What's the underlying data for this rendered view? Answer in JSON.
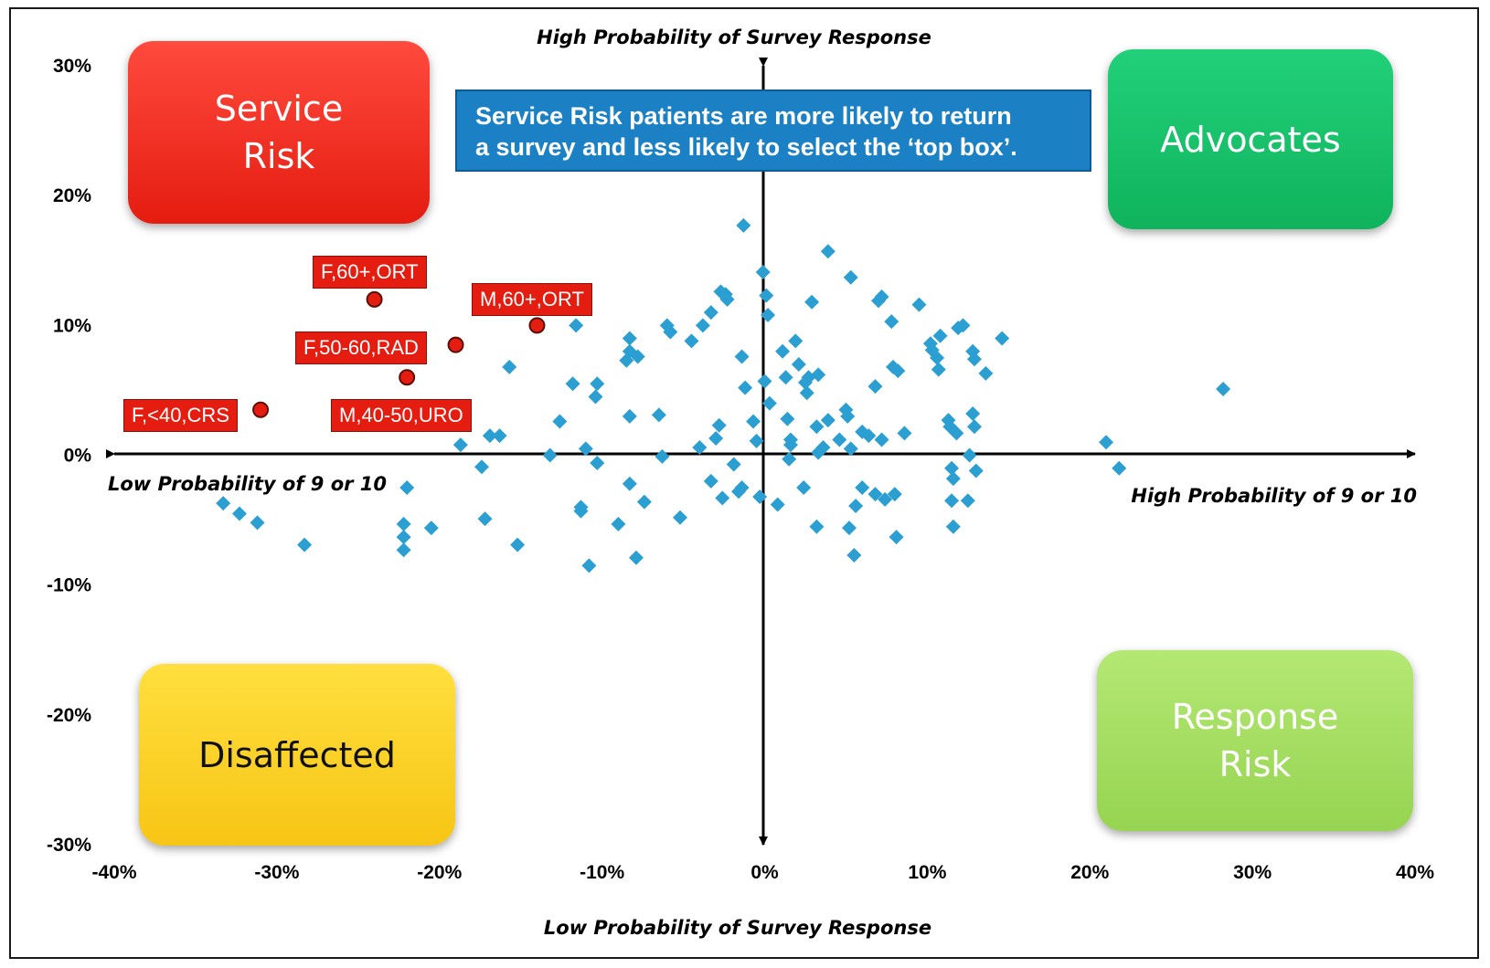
{
  "chart_data": {
    "type": "scatter",
    "title": "",
    "xlabel_right": "High Probability of 9 or 10",
    "xlabel_left": "Low Probability of 9 or 10",
    "ylabel_top": "High Probability of Survey Response",
    "ylabel_bottom": "Low Probability of Survey Response",
    "xlim": [
      -40,
      40
    ],
    "ylim": [
      -30,
      30
    ],
    "x_ticks": [
      -40,
      -30,
      -20,
      -10,
      0,
      10,
      20,
      30,
      40
    ],
    "y_ticks": [
      30,
      20,
      10,
      0,
      -10,
      -20,
      -30
    ],
    "x_tick_labels": [
      "-40%",
      "-30%",
      "-20%",
      "-10%",
      "0%",
      "10%",
      "20%",
      "30%",
      "40%"
    ],
    "y_tick_labels": [
      "30%",
      "20%",
      "10%",
      "0%",
      "-10%",
      "-20%",
      "-30%"
    ],
    "grid": false,
    "quadrants": {
      "top_left": "Service\nRisk",
      "top_right": "Advocates",
      "bottom_left": "Disaffected",
      "bottom_right": "Response\nRisk"
    },
    "callout": "Service Risk patients are more likely to return\na survey and less likely to select the ‘top box’.",
    "colors": {
      "points": "#2b9fd2",
      "highlight": "#e51c10",
      "service_risk": "#f22a1e",
      "advocates": "#14c065",
      "disaffected": "#fbd22a",
      "response_risk": "#a6dd62",
      "callout": "#1b80c4"
    },
    "highlighted": [
      {
        "label": "F,60+,ORT",
        "x": -24,
        "y": 12
      },
      {
        "label": "M,60+,ORT",
        "x": -14,
        "y": 10
      },
      {
        "label": "F,50-60,RAD",
        "x": -19,
        "y": 8.5
      },
      {
        "label": "M,40-50,URO",
        "x": -22,
        "y": 6
      },
      {
        "label": "F,<40,CRS",
        "x": -31,
        "y": 3.5
      }
    ],
    "series": [
      {
        "points": [
          [
            -33.3,
            -3.7
          ],
          [
            -32.3,
            -4.5
          ],
          [
            -31.2,
            -5.2
          ],
          [
            -28.3,
            -6.9
          ],
          [
            -22.0,
            -2.5
          ],
          [
            -22.2,
            -5.3
          ],
          [
            -22.2,
            -6.3
          ],
          [
            -22.2,
            -7.3
          ],
          [
            -20.5,
            -5.6
          ],
          [
            -18.7,
            0.8
          ],
          [
            -17.4,
            -0.9
          ],
          [
            -17.2,
            -4.9
          ],
          [
            -16.9,
            1.5
          ],
          [
            -16.3,
            1.5
          ],
          [
            -15.7,
            6.8
          ],
          [
            -15.2,
            -6.9
          ],
          [
            -13.2,
            0.0
          ],
          [
            -12.6,
            2.6
          ],
          [
            -11.8,
            5.5
          ],
          [
            -11.6,
            10.0
          ],
          [
            -11.3,
            -4.0
          ],
          [
            -11.3,
            -4.3
          ],
          [
            -11.0,
            0.5
          ],
          [
            -10.8,
            -8.5
          ],
          [
            -10.4,
            4.5
          ],
          [
            -10.3,
            5.5
          ],
          [
            -10.3,
            -0.6
          ],
          [
            -9.0,
            -5.3
          ],
          [
            -8.5,
            7.3
          ],
          [
            -8.3,
            3.0
          ],
          [
            -8.3,
            8.0
          ],
          [
            -8.3,
            -2.2
          ],
          [
            -8.3,
            9.0
          ],
          [
            -7.8,
            7.6
          ],
          [
            -7.9,
            -7.9
          ],
          [
            -7.4,
            -3.6
          ],
          [
            -6.5,
            3.1
          ],
          [
            -6.3,
            -0.1
          ],
          [
            -6.0,
            10.0
          ],
          [
            -5.8,
            9.5
          ],
          [
            -5.2,
            -4.8
          ],
          [
            -4.5,
            8.8
          ],
          [
            -4.0,
            0.6
          ],
          [
            -3.8,
            10.0
          ],
          [
            -3.3,
            11.0
          ],
          [
            -3.3,
            -2.0
          ],
          [
            -3.0,
            1.3
          ],
          [
            -2.8,
            2.3
          ],
          [
            -2.7,
            12.6
          ],
          [
            -2.6,
            -3.3
          ],
          [
            -2.4,
            12.4
          ],
          [
            -2.3,
            12.0
          ],
          [
            -1.9,
            -0.7
          ],
          [
            -1.6,
            -2.8
          ],
          [
            -1.4,
            -2.5
          ],
          [
            -1.4,
            7.6
          ],
          [
            -1.3,
            17.7
          ],
          [
            -1.2,
            5.2
          ],
          [
            -0.7,
            2.6
          ],
          [
            -0.5,
            1.1
          ],
          [
            -0.3,
            -3.2
          ],
          [
            -0.1,
            14.1
          ],
          [
            0.0,
            5.7
          ],
          [
            0.1,
            12.3
          ],
          [
            0.2,
            10.8
          ],
          [
            0.3,
            4.0
          ],
          [
            0.8,
            -3.8
          ],
          [
            1.1,
            8.0
          ],
          [
            1.3,
            6.0
          ],
          [
            1.4,
            2.8
          ],
          [
            1.5,
            -0.3
          ],
          [
            1.6,
            1.2
          ],
          [
            1.6,
            0.8
          ],
          [
            1.9,
            8.8
          ],
          [
            2.1,
            7.0
          ],
          [
            2.4,
            -2.5
          ],
          [
            2.5,
            5.6
          ],
          [
            2.6,
            4.8
          ],
          [
            2.7,
            6.0
          ],
          [
            2.9,
            11.8
          ],
          [
            3.2,
            2.2
          ],
          [
            3.3,
            6.2
          ],
          [
            3.2,
            -5.5
          ],
          [
            3.3,
            0.2
          ],
          [
            3.6,
            0.6
          ],
          [
            3.9,
            2.7
          ],
          [
            3.9,
            15.7
          ],
          [
            4.6,
            1.2
          ],
          [
            5.0,
            3.5
          ],
          [
            5.1,
            3.0
          ],
          [
            5.2,
            -5.6
          ],
          [
            5.3,
            0.5
          ],
          [
            5.3,
            13.7
          ],
          [
            5.5,
            -7.7
          ],
          [
            5.6,
            -3.9
          ],
          [
            6.0,
            1.8
          ],
          [
            6.0,
            -2.5
          ],
          [
            6.4,
            1.5
          ],
          [
            6.8,
            5.3
          ],
          [
            6.8,
            -3.0
          ],
          [
            7.0,
            11.9
          ],
          [
            7.2,
            12.2
          ],
          [
            7.4,
            -3.4
          ],
          [
            7.2,
            1.2
          ],
          [
            7.8,
            10.3
          ],
          [
            7.9,
            6.8
          ],
          [
            8.2,
            6.5
          ],
          [
            8.0,
            -3.0
          ],
          [
            8.1,
            -6.3
          ],
          [
            8.6,
            1.7
          ],
          [
            9.5,
            11.6
          ],
          [
            10.2,
            8.6
          ],
          [
            10.3,
            8.1
          ],
          [
            10.6,
            7.5
          ],
          [
            10.7,
            6.6
          ],
          [
            10.8,
            9.2
          ],
          [
            11.3,
            2.7
          ],
          [
            11.4,
            2.2
          ],
          [
            11.5,
            -1.0
          ],
          [
            11.6,
            -1.8
          ],
          [
            11.5,
            -3.5
          ],
          [
            11.6,
            -5.5
          ],
          [
            11.8,
            1.7
          ],
          [
            11.9,
            9.8
          ],
          [
            12.2,
            10.0
          ],
          [
            12.5,
            -3.5
          ],
          [
            12.6,
            0.0
          ],
          [
            12.8,
            3.2
          ],
          [
            12.9,
            2.2
          ],
          [
            12.8,
            8.0
          ],
          [
            12.9,
            7.4
          ],
          [
            13.0,
            -1.2
          ],
          [
            13.6,
            6.3
          ],
          [
            14.6,
            9.0
          ],
          [
            21.0,
            1.0
          ],
          [
            21.8,
            -1.0
          ],
          [
            28.2,
            5.1
          ]
        ]
      }
    ]
  }
}
